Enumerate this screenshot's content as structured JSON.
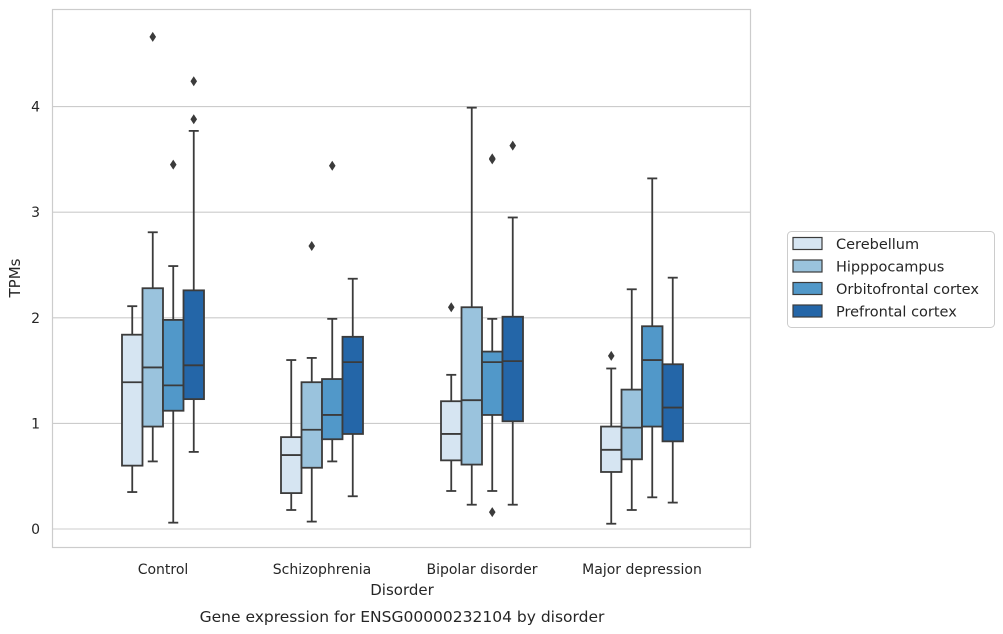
{
  "chart_data": {
    "type": "box",
    "title": "",
    "caption": "Gene expression for ENSG00000232104 by disorder",
    "xlabel": "Disorder",
    "ylabel": "TPMs",
    "ylim": [
      -0.17,
      4.9
    ],
    "yticks": [
      "0",
      "1",
      "2",
      "3",
      "4"
    ],
    "grid": "horizontal",
    "legend_position": "right",
    "categories": [
      "Control",
      "Schizophrenia",
      "Bipolar disorder",
      "Major depression"
    ],
    "series": [
      {
        "name": "Cerebellum",
        "color": "#d6e5f2",
        "boxes": [
          {
            "whisker_low": 0.35,
            "q1": 0.6,
            "median": 1.39,
            "q3": 1.84,
            "whisker_high": 2.11,
            "outliers": []
          },
          {
            "whisker_low": 0.18,
            "q1": 0.34,
            "median": 0.7,
            "q3": 0.87,
            "whisker_high": 1.6,
            "outliers": []
          },
          {
            "whisker_low": 0.36,
            "q1": 0.65,
            "median": 0.9,
            "q3": 1.21,
            "whisker_high": 1.46,
            "outliers": [
              2.1
            ]
          },
          {
            "whisker_low": 0.05,
            "q1": 0.54,
            "median": 0.75,
            "q3": 0.97,
            "whisker_high": 1.52,
            "outliers": [
              1.64
            ]
          }
        ]
      },
      {
        "name": "Hipppocampus",
        "color": "#9ac3dd",
        "boxes": [
          {
            "whisker_low": 0.64,
            "q1": 0.97,
            "median": 1.53,
            "q3": 2.28,
            "whisker_high": 2.81,
            "outliers": [
              4.66
            ]
          },
          {
            "whisker_low": 0.07,
            "q1": 0.58,
            "median": 0.94,
            "q3": 1.39,
            "whisker_high": 1.62,
            "outliers": [
              2.68
            ]
          },
          {
            "whisker_low": 0.23,
            "q1": 0.61,
            "median": 1.22,
            "q3": 2.1,
            "whisker_high": 3.99,
            "outliers": []
          },
          {
            "whisker_low": 0.18,
            "q1": 0.66,
            "median": 0.96,
            "q3": 1.32,
            "whisker_high": 2.27,
            "outliers": []
          }
        ]
      },
      {
        "name": "Orbitofrontal cortex",
        "color": "#5198c9",
        "boxes": [
          {
            "whisker_low": 0.06,
            "q1": 1.12,
            "median": 1.36,
            "q3": 1.98,
            "whisker_high": 2.49,
            "outliers": [
              3.45
            ]
          },
          {
            "whisker_low": 0.64,
            "q1": 0.85,
            "median": 1.08,
            "q3": 1.42,
            "whisker_high": 1.99,
            "outliers": [
              3.44
            ]
          },
          {
            "whisker_low": 0.36,
            "q1": 1.08,
            "median": 1.58,
            "q3": 1.68,
            "whisker_high": 1.99,
            "outliers": [
              0.16,
              3.5,
              3.51
            ]
          },
          {
            "whisker_low": 0.3,
            "q1": 0.97,
            "median": 1.6,
            "q3": 1.92,
            "whisker_high": 3.32,
            "outliers": []
          }
        ]
      },
      {
        "name": "Prefrontal cortex",
        "color": "#2466a8",
        "boxes": [
          {
            "whisker_low": 0.73,
            "q1": 1.23,
            "median": 1.55,
            "q3": 2.26,
            "whisker_high": 3.77,
            "outliers": [
              3.88,
              4.24
            ]
          },
          {
            "whisker_low": 0.31,
            "q1": 0.9,
            "median": 1.58,
            "q3": 1.82,
            "whisker_high": 2.37,
            "outliers": []
          },
          {
            "whisker_low": 0.23,
            "q1": 1.02,
            "median": 1.59,
            "q3": 2.01,
            "whisker_high": 2.95,
            "outliers": [
              3.63
            ]
          },
          {
            "whisker_low": 0.25,
            "q1": 0.83,
            "median": 1.15,
            "q3": 1.56,
            "whisker_high": 2.38,
            "outliers": []
          }
        ]
      }
    ]
  }
}
